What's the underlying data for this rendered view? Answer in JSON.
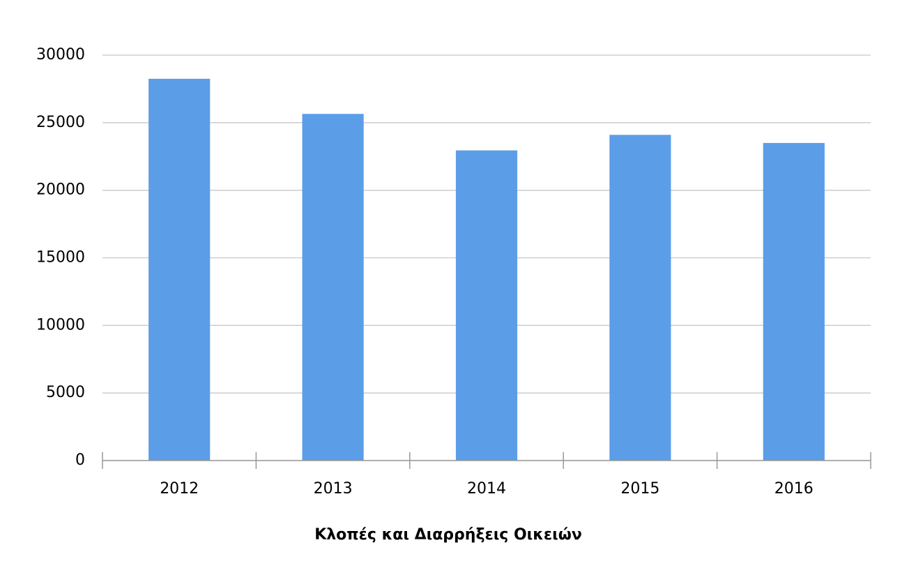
{
  "chart_data": {
    "type": "bar",
    "x_label": "Κλοπές και Διαρρήξεις Οικειών",
    "categories": [
      "2012",
      "2013",
      "2014",
      "2015",
      "2016"
    ],
    "values": [
      28250,
      25650,
      22950,
      24100,
      23500
    ],
    "color": "#5c9de8",
    "ylim": [
      0,
      30000
    ],
    "yticks": [
      0,
      5000,
      10000,
      15000,
      20000,
      25000,
      30000
    ],
    "grid": true
  }
}
